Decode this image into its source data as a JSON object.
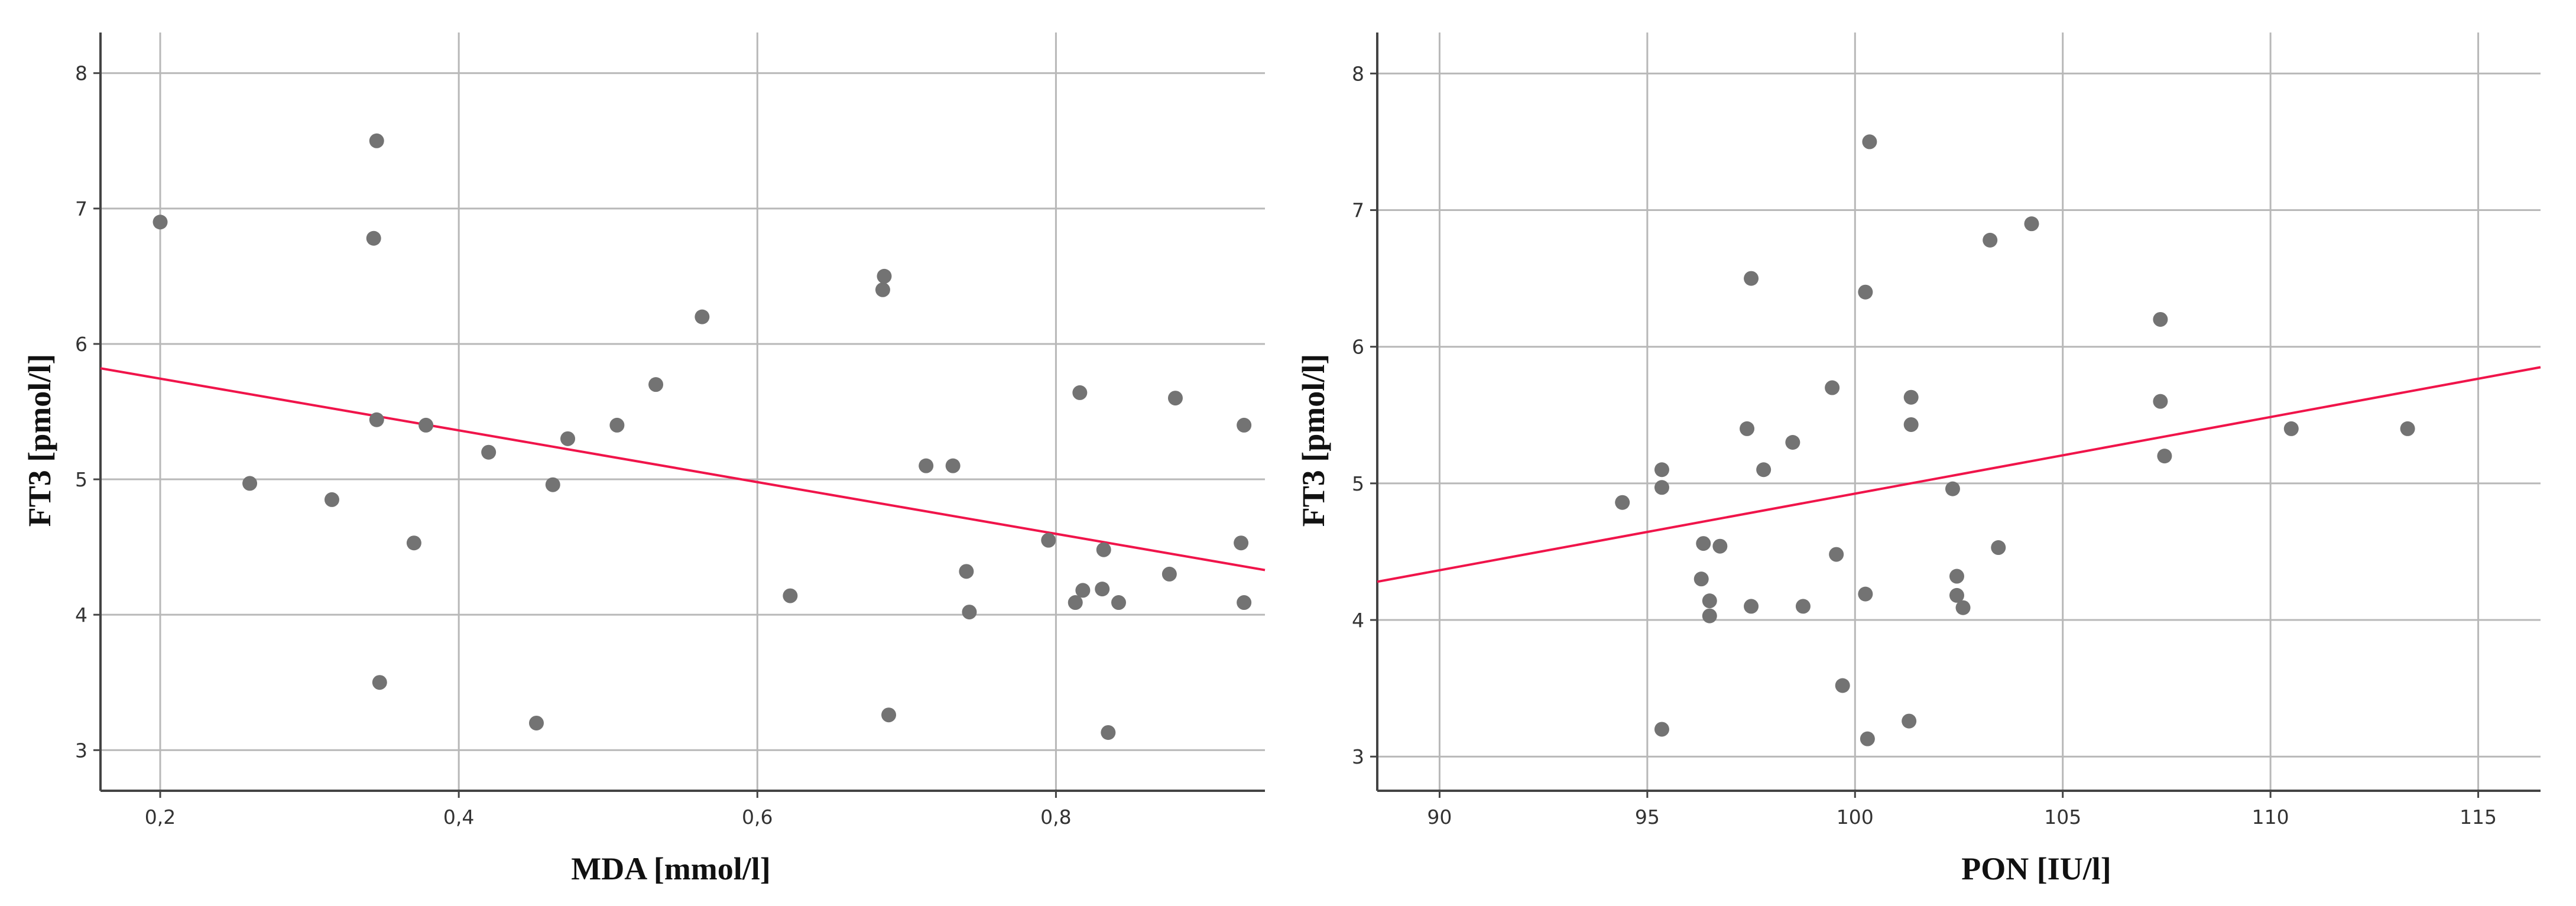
{
  "chart_data": [
    {
      "type": "scatter",
      "xlabel": "MDA [mmol/l]",
      "ylabel": "FT3 [pmol/l]",
      "xlim": [
        0.16,
        0.94
      ],
      "ylim": [
        2.7,
        8.3
      ],
      "xticks": [
        0.2,
        0.4,
        0.6,
        0.8
      ],
      "xtick_labels": [
        "0,2",
        "0,4",
        "0,6",
        "0,8"
      ],
      "yticks": [
        3,
        4,
        5,
        6,
        7,
        8
      ],
      "ytick_labels": [
        "3",
        "4",
        "5",
        "6",
        "7",
        "8"
      ],
      "grid": true,
      "fit_line": {
        "x": [
          0.16,
          0.94
        ],
        "y": [
          5.82,
          4.33
        ]
      },
      "x": [
        0.2,
        0.26,
        0.315,
        0.343,
        0.345,
        0.345,
        0.347,
        0.37,
        0.378,
        0.42,
        0.452,
        0.463,
        0.473,
        0.506,
        0.532,
        0.563,
        0.622,
        0.684,
        0.685,
        0.688,
        0.713,
        0.731,
        0.74,
        0.742,
        0.795,
        0.813,
        0.816,
        0.818,
        0.831,
        0.832,
        0.835,
        0.842,
        0.876,
        0.88,
        0.924,
        0.926,
        0.926
      ],
      "y": [
        6.9,
        4.97,
        4.85,
        6.78,
        5.44,
        7.5,
        3.5,
        4.53,
        5.4,
        5.2,
        3.2,
        4.96,
        5.3,
        5.4,
        5.7,
        6.2,
        4.14,
        6.4,
        6.5,
        3.26,
        5.1,
        5.1,
        4.32,
        4.02,
        4.55,
        4.09,
        5.64,
        4.18,
        4.19,
        4.48,
        3.13,
        4.09,
        4.3,
        5.6,
        4.53,
        4.09,
        5.4
      ]
    },
    {
      "type": "scatter",
      "xlabel": "PON [IU/l]",
      "ylabel": "FT3 [pmol/l]",
      "xlim": [
        88.5,
        116.5
      ],
      "ylim": [
        2.75,
        8.3
      ],
      "xticks": [
        90,
        95,
        100,
        105,
        110,
        115
      ],
      "xtick_labels": [
        "90",
        "95",
        "100",
        "105",
        "110",
        "115"
      ],
      "yticks": [
        3,
        4,
        5,
        6,
        7,
        8
      ],
      "ytick_labels": [
        "3",
        "4",
        "5",
        "6",
        "7",
        "8"
      ],
      "grid": true,
      "fit_line": {
        "x": [
          88.5,
          116.5
        ],
        "y": [
          4.28,
          5.85
        ]
      },
      "x": [
        94.4,
        95.35,
        95.35,
        95.35,
        96.3,
        96.35,
        96.5,
        96.5,
        96.75,
        97.4,
        97.5,
        97.5,
        97.8,
        98.5,
        98.75,
        99.45,
        99.55,
        99.7,
        100.25,
        100.25,
        100.3,
        100.35,
        101.3,
        101.35,
        101.35,
        102.35,
        102.45,
        102.45,
        102.6,
        103.25,
        103.45,
        104.25,
        107.35,
        107.35,
        107.45,
        110.5,
        113.3
      ],
      "y": [
        4.86,
        5.1,
        4.97,
        3.2,
        4.3,
        4.56,
        4.14,
        4.03,
        4.54,
        5.4,
        6.5,
        4.1,
        5.1,
        5.3,
        4.1,
        5.7,
        4.48,
        3.52,
        6.4,
        4.19,
        3.13,
        7.5,
        3.26,
        5.63,
        5.43,
        4.96,
        4.32,
        4.18,
        4.09,
        6.78,
        4.53,
        6.9,
        6.2,
        5.6,
        5.2,
        5.4,
        5.4
      ]
    }
  ]
}
